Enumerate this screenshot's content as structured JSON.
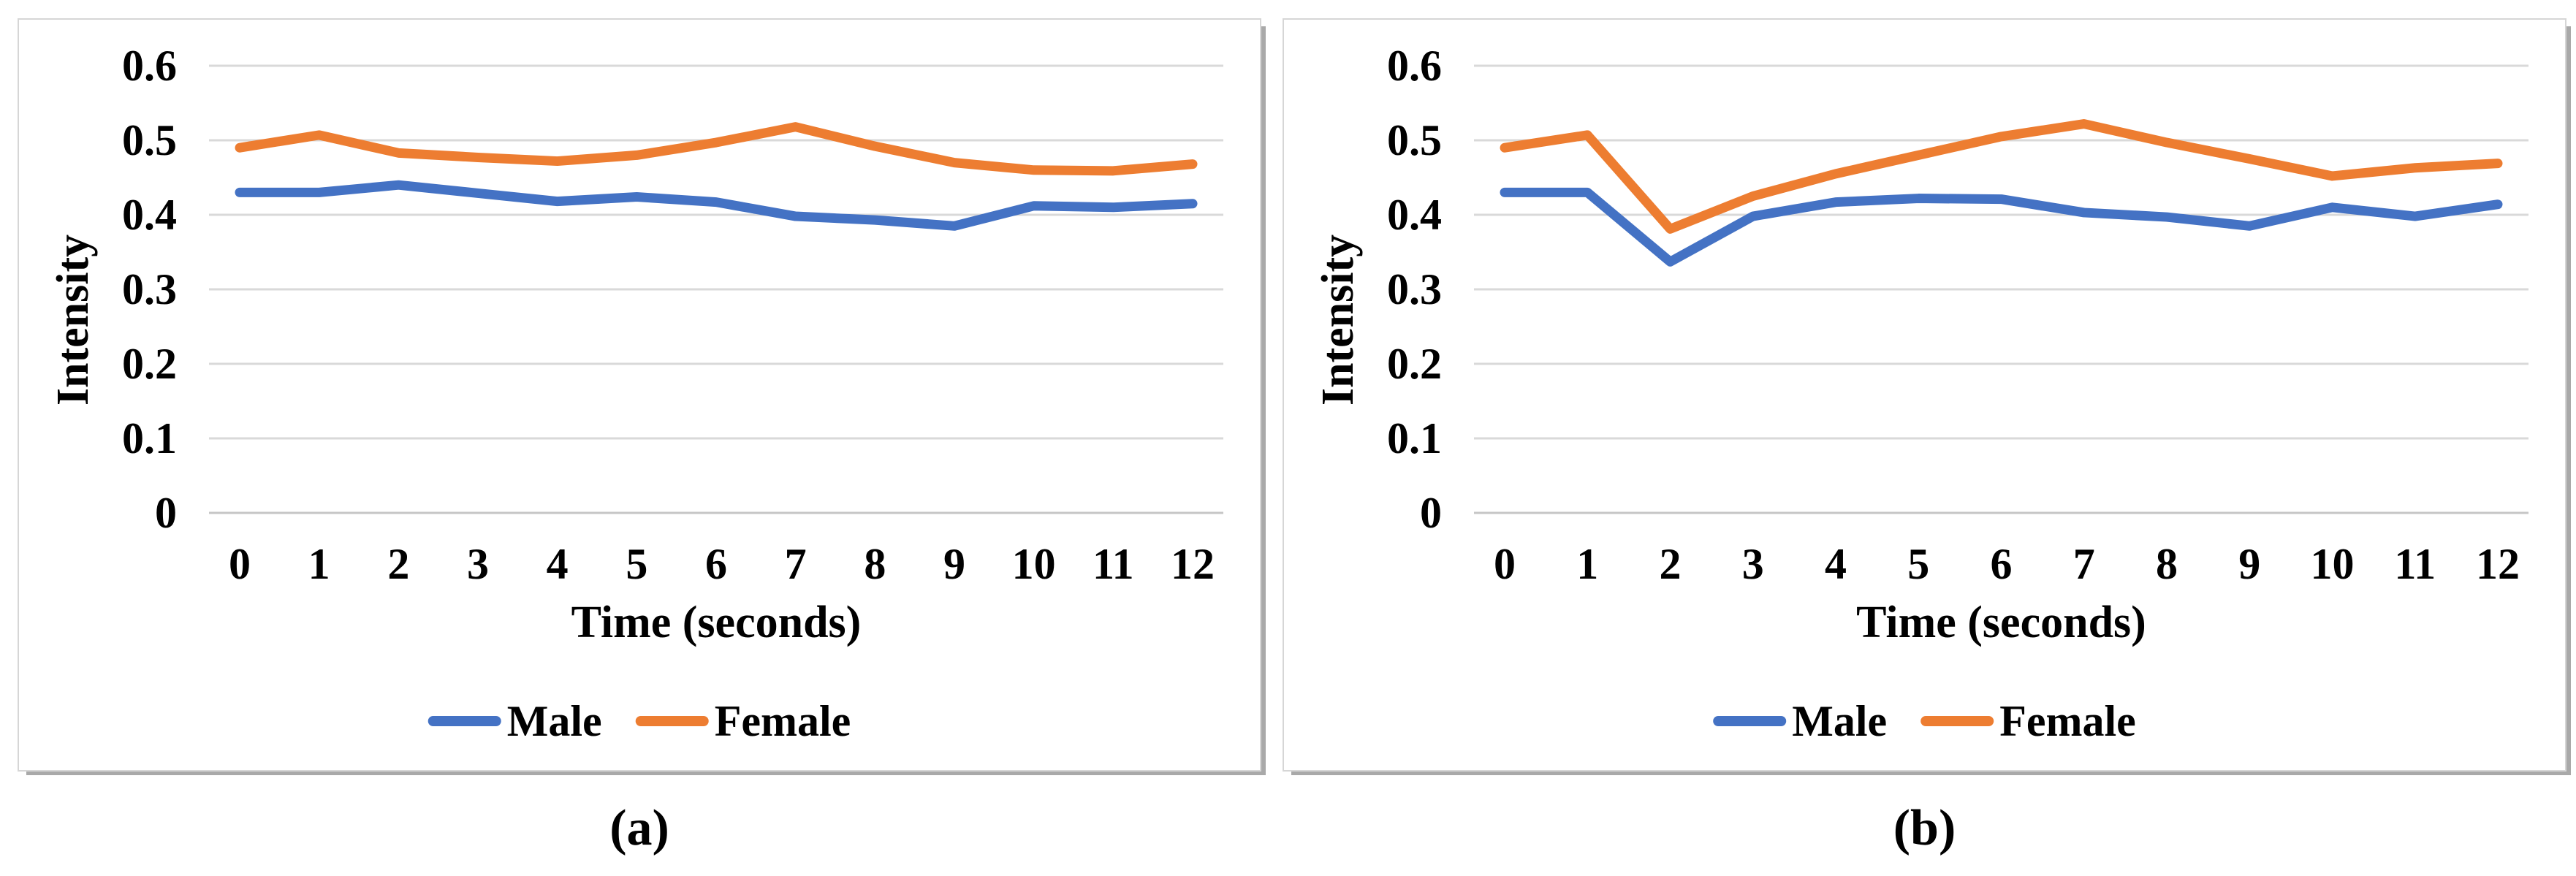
{
  "figure": {
    "captions": {
      "a": "(a)",
      "b": "(b)"
    }
  },
  "colors": {
    "male_line": "#4472C4",
    "female_line": "#ED7D31",
    "gridline": "#D9D9D9",
    "axis_line": "#C6C6C6",
    "text": "#000000",
    "panel_border": "#D6D6D6",
    "panel_shadow": "#A9A9A9",
    "background": "#FFFFFF"
  },
  "chart_data": [
    {
      "type": "line",
      "panel": "a",
      "title": "",
      "xlabel": "Time (seconds)",
      "ylabel": "Intensity",
      "x_ticks": [
        "0",
        "1",
        "2",
        "3",
        "4",
        "5",
        "6",
        "7",
        "8",
        "9",
        "10",
        "11",
        "12"
      ],
      "y_ticks": [
        "0",
        "0.1",
        "0.2",
        "0.3",
        "0.4",
        "0.5",
        "0.6"
      ],
      "x": [
        0,
        1,
        2,
        3,
        4,
        5,
        6,
        7,
        8,
        9,
        10,
        11,
        12
      ],
      "ylim": [
        0,
        0.6
      ],
      "grid": true,
      "legend_position": "bottom",
      "series": [
        {
          "name": "Male",
          "color": "#4472C4",
          "values": [
            0.43,
            0.43,
            0.44,
            0.429,
            0.418,
            0.424,
            0.417,
            0.398,
            0.393,
            0.385,
            0.412,
            0.41,
            0.415
          ]
        },
        {
          "name": "Female",
          "color": "#ED7D31",
          "values": [
            0.49,
            0.507,
            0.483,
            0.477,
            0.472,
            0.48,
            0.497,
            0.518,
            0.492,
            0.47,
            0.46,
            0.459,
            0.468
          ]
        }
      ]
    },
    {
      "type": "line",
      "panel": "b",
      "title": "",
      "xlabel": "Time (seconds)",
      "ylabel": "Intensity",
      "x_ticks": [
        "0",
        "1",
        "2",
        "3",
        "4",
        "5",
        "6",
        "7",
        "8",
        "9",
        "10",
        "11",
        "12"
      ],
      "y_ticks": [
        "0",
        "0.1",
        "0.2",
        "0.3",
        "0.4",
        "0.5",
        "0.6"
      ],
      "x": [
        0,
        1,
        2,
        3,
        4,
        5,
        6,
        7,
        8,
        9,
        10,
        11,
        12
      ],
      "ylim": [
        0,
        0.6
      ],
      "grid": true,
      "legend_position": "bottom",
      "series": [
        {
          "name": "Male",
          "color": "#4472C4",
          "values": [
            0.43,
            0.43,
            0.337,
            0.398,
            0.417,
            0.422,
            0.421,
            0.403,
            0.397,
            0.385,
            0.41,
            0.398,
            0.414
          ]
        },
        {
          "name": "Female",
          "color": "#ED7D31",
          "values": [
            0.49,
            0.507,
            0.381,
            0.425,
            0.455,
            0.48,
            0.505,
            0.522,
            0.497,
            0.475,
            0.452,
            0.463,
            0.469
          ]
        }
      ]
    }
  ]
}
